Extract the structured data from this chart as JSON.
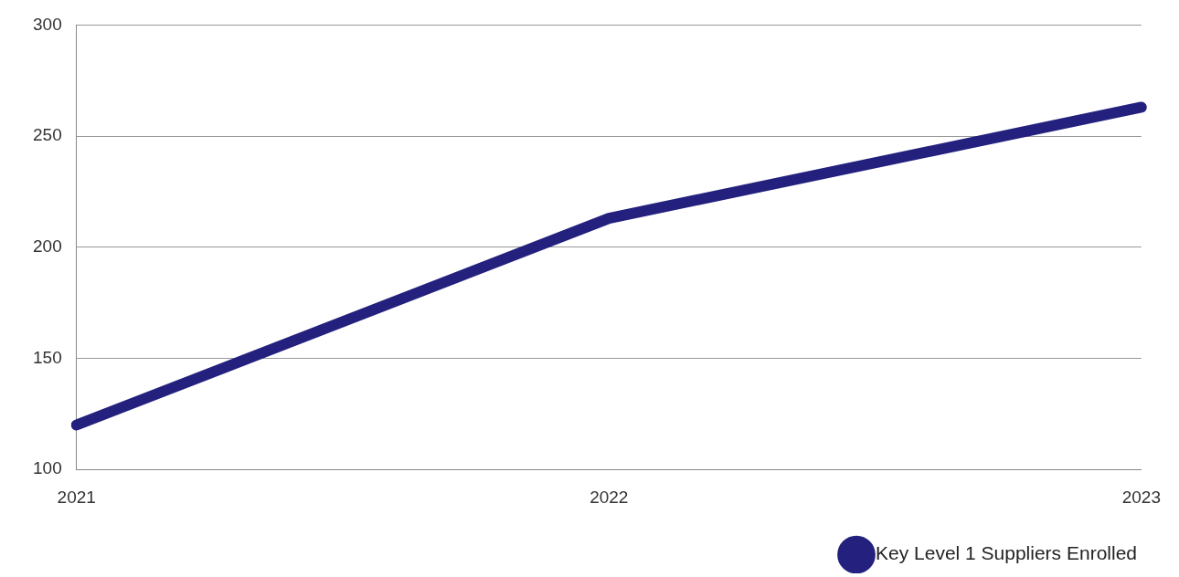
{
  "chart_data": {
    "type": "line",
    "categories": [
      "2021",
      "2022",
      "2023"
    ],
    "series": [
      {
        "name": "Key Level 1 Suppliers Enrolled",
        "color": "#24217e",
        "values": [
          120,
          213,
          263
        ]
      }
    ],
    "ylim": [
      100,
      300
    ],
    "yticks": [
      100,
      150,
      200,
      250,
      300
    ],
    "grid": "y",
    "legend": "bottom right",
    "marker": "none",
    "line_style": "solid"
  }
}
